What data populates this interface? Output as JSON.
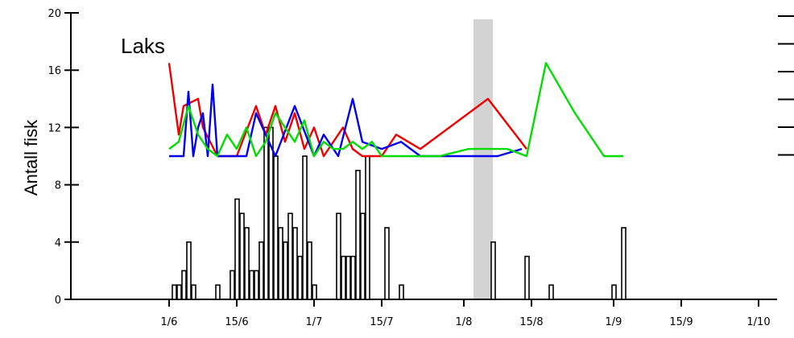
{
  "chart_data": {
    "type": "bar",
    "title": "",
    "annotation": "Laks",
    "ylabel": "Antall fisk",
    "xlabel": "",
    "ylim": [
      0,
      20
    ],
    "yticks": [
      0,
      4,
      8,
      12,
      16,
      20
    ],
    "ytick_labels": [
      "0",
      "4",
      "8",
      "12",
      "16",
      "20"
    ],
    "x_tick_labels": [
      "1/6",
      "15/6",
      "1/7",
      "15/7",
      "1/8",
      "15/8",
      "1/9",
      "15/9",
      "1/10"
    ],
    "x_tick_days": [
      0,
      14,
      30,
      44,
      61,
      75,
      92,
      106,
      122
    ],
    "grid": false,
    "shaded_period": {
      "start_day": 63,
      "end_day": 67
    },
    "bars": {
      "name": "",
      "color": "#000000",
      "days": [
        0,
        1,
        2,
        3,
        4,
        5,
        6,
        9,
        12,
        13,
        14,
        15,
        16,
        17,
        18,
        19,
        20,
        21,
        22,
        23,
        24,
        25,
        26,
        27,
        28,
        29,
        30,
        31,
        34,
        35,
        36,
        37,
        38,
        39,
        40,
        44,
        47,
        50,
        66,
        73,
        78,
        91,
        93
      ],
      "values": [
        1,
        1,
        2,
        4,
        1,
        0,
        0,
        1,
        2,
        7,
        6,
        5,
        2,
        2,
        4,
        12,
        12,
        10,
        5,
        4,
        6,
        5,
        3,
        10,
        4,
        1,
        0,
        0,
        6,
        3,
        3,
        3,
        9,
        6,
        10,
        5,
        1,
        0,
        4,
        3,
        1,
        1,
        5
      ]
    },
    "series": [
      {
        "name": "",
        "color": "#ee0000",
        "x": [
          0,
          2,
          3,
          6,
          7,
          10,
          14,
          18,
          20,
          22,
          24,
          26,
          28,
          30,
          32,
          34,
          36,
          38,
          40,
          44,
          47,
          52,
          66,
          74
        ],
        "y": [
          16.5,
          11.5,
          13.5,
          14,
          12,
          10,
          10,
          13.5,
          11.5,
          13.5,
          11,
          13,
          10.5,
          12,
          10,
          11,
          12,
          10.5,
          10,
          10,
          11.5,
          10.5,
          14,
          10.5
        ]
      },
      {
        "name": "",
        "color": "#0000ee",
        "x": [
          0,
          3,
          4,
          5,
          6,
          7,
          8,
          9,
          10,
          12,
          14,
          16,
          18,
          22,
          26,
          30,
          32,
          35,
          38,
          40,
          44,
          48,
          52,
          60,
          62,
          66,
          68,
          73
        ],
        "y": [
          10,
          10,
          14.5,
          10,
          12,
          13,
          10,
          15,
          10,
          10,
          10,
          10,
          13,
          10,
          13.5,
          10,
          11.5,
          10,
          14,
          11,
          10.5,
          11,
          10,
          10,
          10,
          10,
          10,
          10.5
        ]
      },
      {
        "name": "",
        "color": "#00dd00",
        "x": [
          0,
          2,
          4,
          6,
          8,
          10,
          12,
          14,
          16,
          18,
          20,
          22,
          24,
          26,
          28,
          30,
          32,
          34,
          36,
          38,
          40,
          42,
          44,
          50,
          56,
          62,
          66,
          70,
          74,
          78,
          84,
          90,
          94
        ],
        "y": [
          10.5,
          11,
          13.5,
          11.5,
          10.5,
          10,
          11.5,
          10.5,
          12,
          10,
          11,
          13,
          12,
          11,
          12.5,
          10,
          11,
          10.5,
          10.5,
          11,
          10.5,
          11,
          10,
          10,
          10,
          10.5,
          10.5,
          10.5,
          10,
          16.5,
          13,
          10,
          10
        ]
      }
    ],
    "right_legend_dashes": 6
  }
}
